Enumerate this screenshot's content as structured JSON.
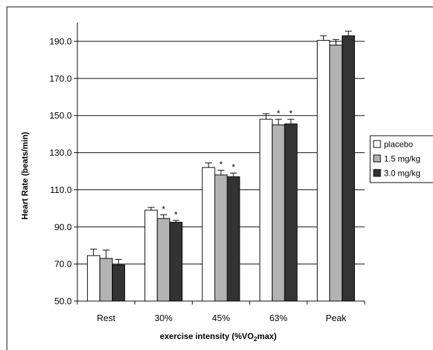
{
  "chart_data": {
    "type": "bar",
    "title": "",
    "xlabel": "exercise intensity (%VO",
    "xlabel_sub": "2",
    "xlabel_suffix": "max)",
    "ylabel": "Heart Rate (beats/min)",
    "ylim": [
      50,
      195
    ],
    "yticks": [
      "50.0",
      "70.0",
      "90.0",
      "110.0",
      "130.0",
      "150.0",
      "170.0",
      "190.0"
    ],
    "ytick_values": [
      50,
      70,
      90,
      110,
      130,
      150,
      170,
      190
    ],
    "grid": true,
    "legend_position": "right",
    "categories": [
      "Rest",
      "30%",
      "45%",
      "63%",
      "Peak"
    ],
    "series": [
      {
        "name": "placebo",
        "color": "#ffffff",
        "values": [
          74.5,
          99,
          122,
          148,
          190.5
        ],
        "errors": [
          3.5,
          1.5,
          2.5,
          3,
          2.5
        ],
        "significant": [
          false,
          false,
          false,
          false,
          false
        ]
      },
      {
        "name": "1.5 mg/kg",
        "color": "#b3b3b3",
        "values": [
          73,
          94.5,
          118,
          145,
          188
        ],
        "errors": [
          4.5,
          2,
          2.5,
          3,
          3
        ],
        "significant": [
          false,
          true,
          true,
          true,
          false
        ]
      },
      {
        "name": "3.0 mg/kg",
        "color": "#333333",
        "values": [
          69.5,
          92.5,
          117,
          145.5,
          193
        ],
        "errors": [
          3,
          1,
          2,
          2.5,
          2.5
        ],
        "significant": [
          false,
          true,
          true,
          true,
          false
        ]
      }
    ],
    "annotation_symbol": "*"
  }
}
